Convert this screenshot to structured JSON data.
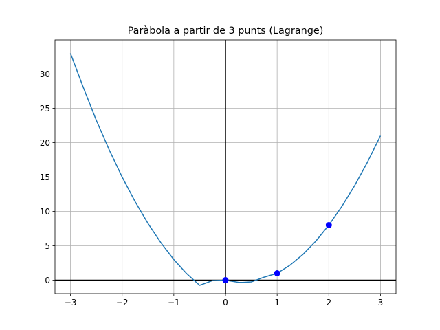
{
  "chart_data": {
    "type": "line",
    "title": "Paràbola a partir de 3 punts (Lagrange)",
    "xlabel": "",
    "ylabel": "",
    "xlim": [
      -3.3,
      3.3
    ],
    "ylim": [
      -1.95,
      34.95
    ],
    "x_ticks": [
      -3,
      -2,
      -1,
      0,
      1,
      2,
      3
    ],
    "x_tick_labels": [
      "−3",
      "−2",
      "−1",
      "0",
      "1",
      "2",
      "3"
    ],
    "y_ticks": [
      0,
      5,
      10,
      15,
      20,
      25,
      30
    ],
    "y_tick_labels": [
      "0",
      "5",
      "10",
      "15",
      "20",
      "25",
      "30"
    ],
    "grid": true,
    "reference_lines": {
      "horizontal_y": 0,
      "vertical_x": 0,
      "color": "#000000"
    },
    "series": [
      {
        "kind": "line",
        "color": "#1f77b4",
        "x": [
          -3.0,
          -2.75,
          -2.5,
          -2.25,
          -2.0,
          -1.75,
          -1.5,
          -1.25,
          -1.0,
          -0.75,
          -0.5,
          -0.25,
          0.0,
          0.25,
          0.333,
          0.5,
          0.75,
          1.0,
          1.25,
          1.5,
          1.75,
          2.0,
          2.25,
          2.5,
          2.75,
          3.0
        ],
        "y": [
          33.0,
          28.0,
          23.25,
          18.94,
          15.0,
          11.44,
          8.25,
          5.44,
          3.0,
          0.94,
          -0.75,
          -0.06,
          0.0,
          -0.31,
          -0.33,
          -0.25,
          0.44,
          1.0,
          2.19,
          3.75,
          5.69,
          8.0,
          10.69,
          13.75,
          17.19,
          21.0
        ]
      },
      {
        "kind": "points",
        "color": "#0000ff",
        "x": [
          0,
          1,
          2
        ],
        "y": [
          0,
          1,
          8
        ]
      }
    ]
  }
}
